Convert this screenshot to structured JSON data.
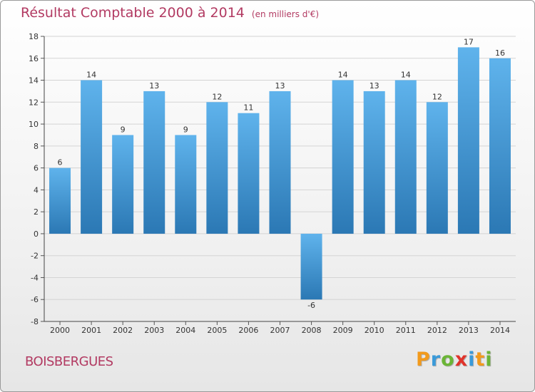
{
  "chart_data": {
    "type": "bar",
    "title": "Résultat Comptable 2000 à 2014",
    "unit": "(en milliers d'€)",
    "xlabel": "",
    "ylabel": "",
    "categories": [
      "2000",
      "2001",
      "2002",
      "2003",
      "2004",
      "2005",
      "2006",
      "2007",
      "2008",
      "2009",
      "2010",
      "2011",
      "2012",
      "2013",
      "2014"
    ],
    "values": [
      6,
      14,
      9,
      13,
      9,
      12,
      11,
      13,
      -6,
      14,
      13,
      14,
      12,
      17,
      16
    ],
    "ylim": [
      -8,
      18
    ],
    "yticks": [
      18,
      16,
      14,
      12,
      10,
      8,
      6,
      4,
      2,
      0,
      -2,
      -4,
      -6,
      -8
    ],
    "grid": true,
    "bar_color_light": "#5fb3ec",
    "bar_color_dark": "#2b78b4",
    "title_color": "#b23a62"
  },
  "location": "BOISBERGUES",
  "brand": {
    "name": "Proxiti",
    "letters": [
      {
        "char": "P",
        "color": "#f29a1c"
      },
      {
        "char": "r",
        "color": "#3a9ad9"
      },
      {
        "char": "o",
        "color": "#6bb536"
      },
      {
        "char": "x",
        "color": "#e0332b"
      },
      {
        "char": "i",
        "color": "#3a9ad9"
      },
      {
        "char": "t",
        "color": "#f29a1c"
      },
      {
        "char": "i",
        "color": "#6bb536"
      }
    ]
  }
}
